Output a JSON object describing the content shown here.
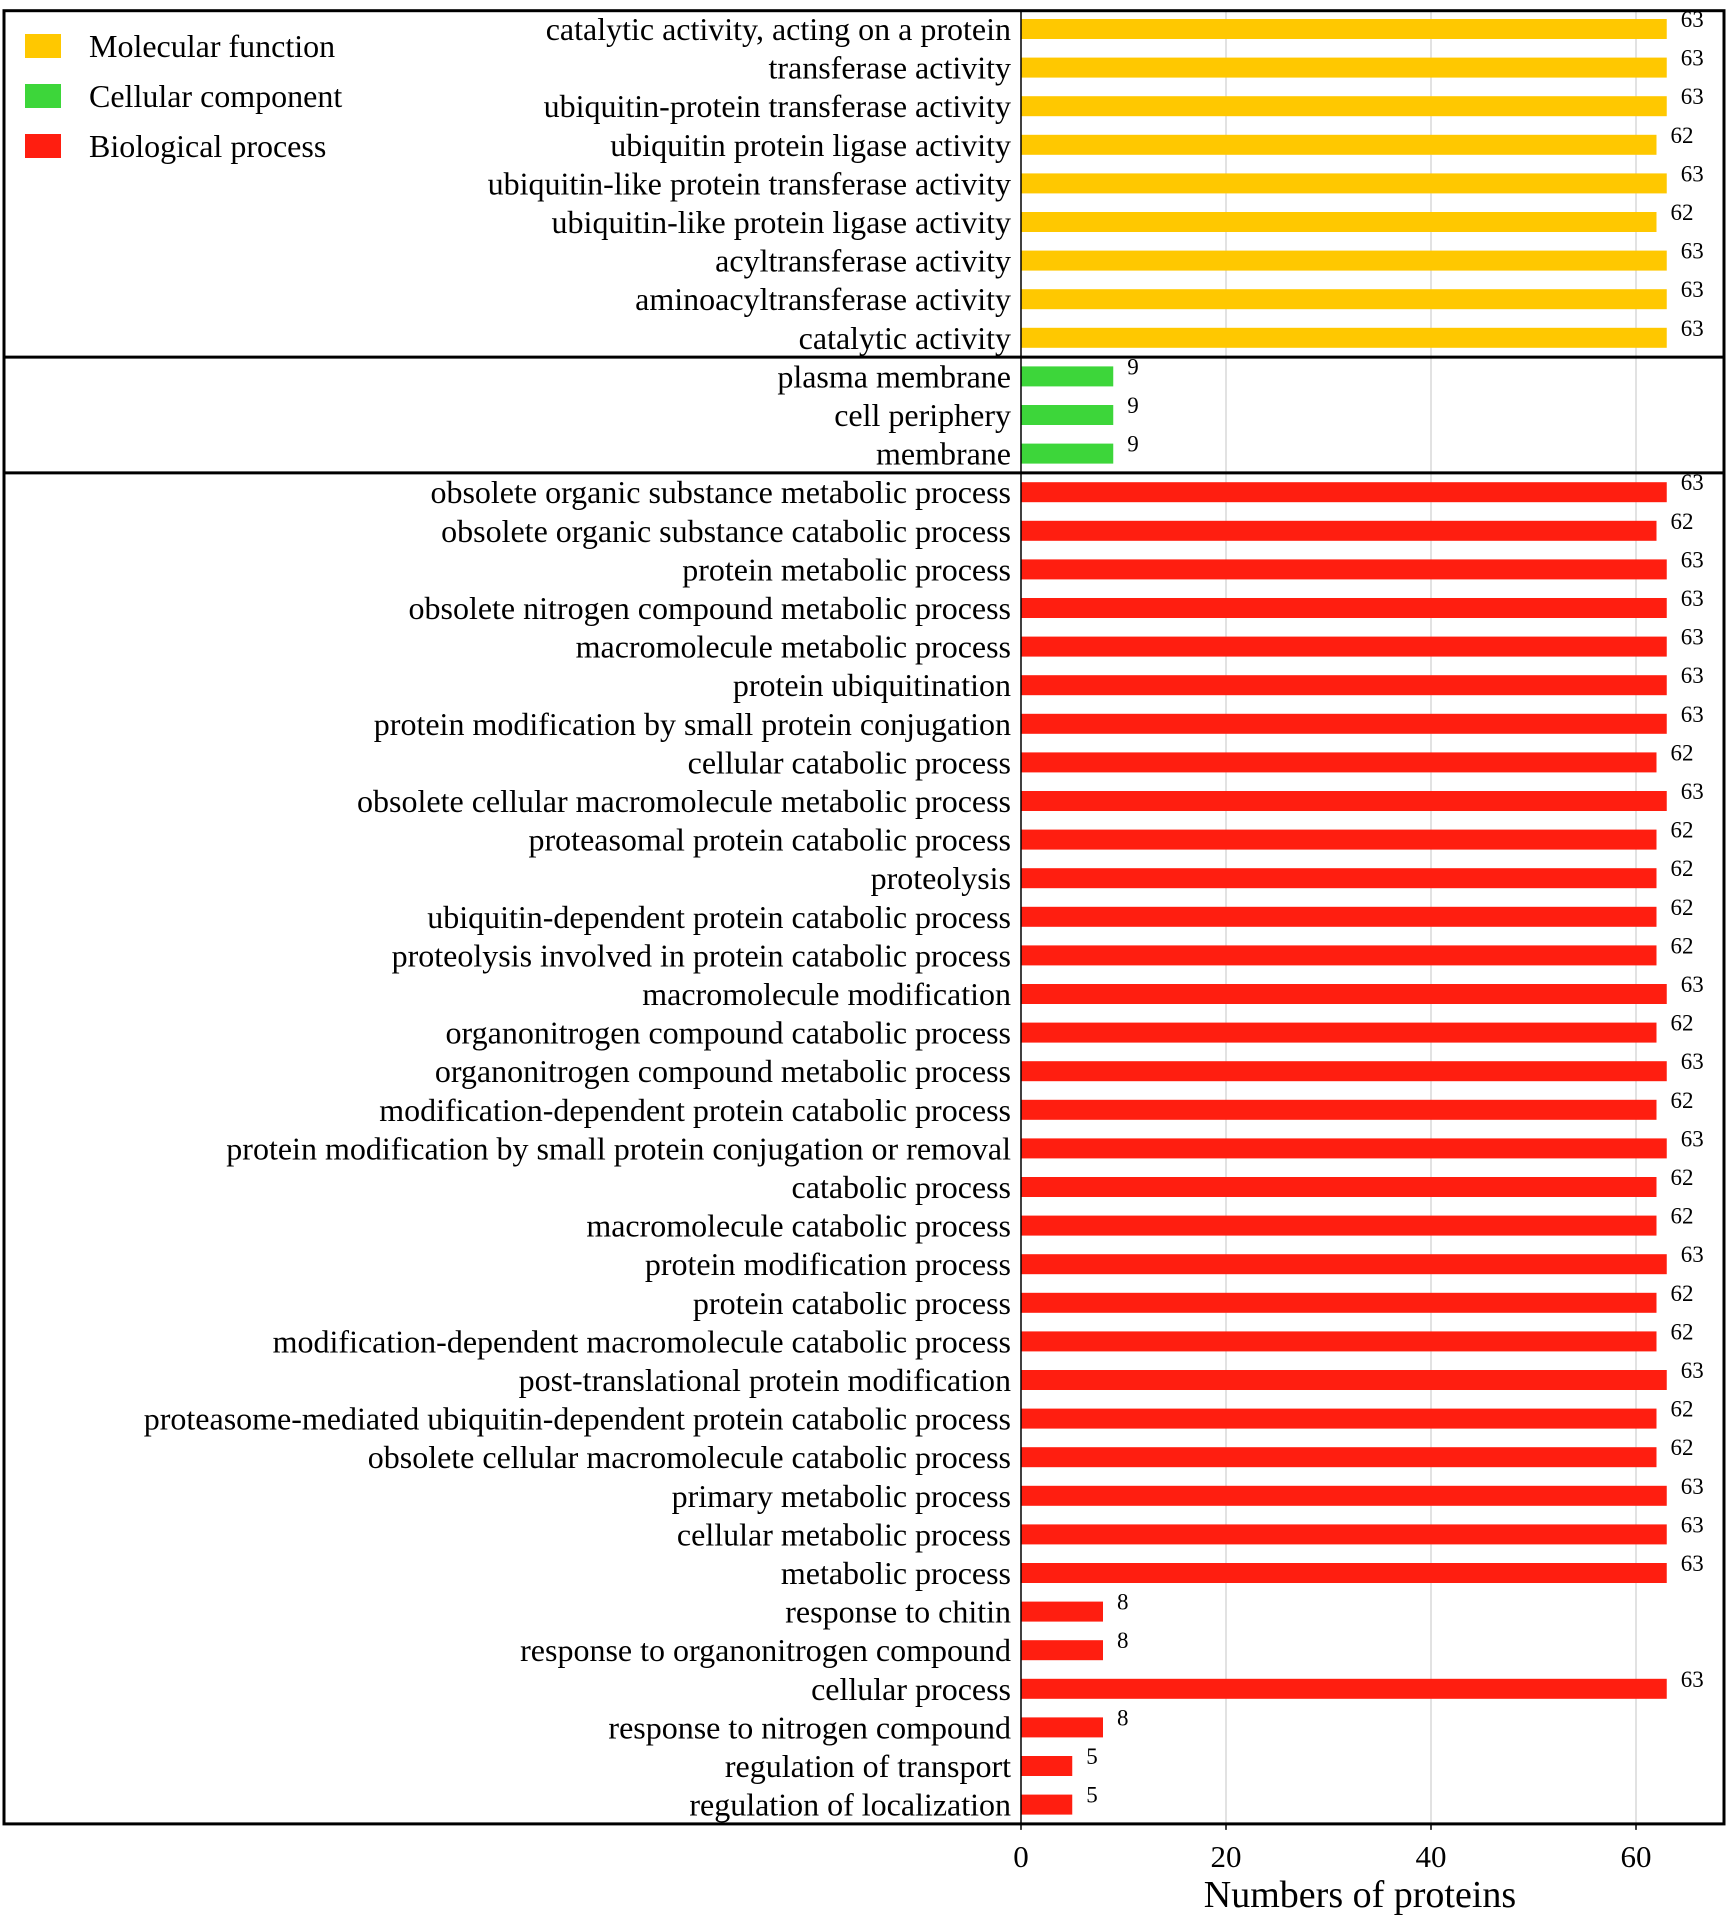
{
  "chart_data": {
    "type": "bar",
    "orientation": "horizontal",
    "xlabel": "Numbers of proteins",
    "xlim": [
      0,
      68
    ],
    "xticks": [
      0,
      20,
      40,
      60
    ],
    "grid": true,
    "legend_position": "top-left",
    "legend": [
      {
        "name": "Molecular function",
        "color": "#FFC800"
      },
      {
        "name": "Cellular component",
        "color": "#3DD63A"
      },
      {
        "name": "Biological process",
        "color": "#FF1E10"
      }
    ],
    "groups": [
      {
        "name": "Molecular function",
        "color": "#FFC800",
        "categories": [
          "catalytic activity, acting on a protein",
          "transferase activity",
          "ubiquitin-protein transferase activity",
          "ubiquitin protein ligase activity",
          "ubiquitin-like protein transferase activity",
          "ubiquitin-like protein ligase activity",
          "acyltransferase activity",
          "aminoacyltransferase activity",
          "catalytic activity"
        ],
        "values": [
          63,
          63,
          63,
          62,
          63,
          62,
          63,
          63,
          63
        ]
      },
      {
        "name": "Cellular component",
        "color": "#3DD63A",
        "categories": [
          "plasma membrane",
          "cell periphery",
          "membrane"
        ],
        "values": [
          9,
          9,
          9
        ]
      },
      {
        "name": "Biological process",
        "color": "#FF1E10",
        "categories": [
          "obsolete organic substance metabolic process",
          "obsolete organic substance catabolic process",
          "protein metabolic process",
          "obsolete nitrogen compound metabolic process",
          "macromolecule metabolic process",
          "protein ubiquitination",
          "protein modification by small protein conjugation",
          "cellular catabolic process",
          "obsolete cellular macromolecule metabolic process",
          "proteasomal protein catabolic process",
          "proteolysis",
          "ubiquitin-dependent protein catabolic process",
          "proteolysis involved in protein catabolic process",
          "macromolecule modification",
          "organonitrogen compound catabolic process",
          "organonitrogen compound metabolic process",
          "modification-dependent protein catabolic process",
          "protein modification by small protein conjugation or removal",
          "catabolic process",
          "macromolecule catabolic process",
          "protein modification process",
          "protein catabolic process",
          "modification-dependent macromolecule catabolic process",
          "post-translational protein modification",
          "proteasome-mediated ubiquitin-dependent protein catabolic process",
          "obsolete cellular macromolecule catabolic process",
          "primary metabolic process",
          "cellular metabolic process",
          "metabolic process",
          "response to chitin",
          "response to organonitrogen compound",
          "cellular process",
          "response to nitrogen compound",
          "regulation of transport",
          "regulation of localization"
        ],
        "values": [
          63,
          62,
          63,
          63,
          63,
          63,
          63,
          62,
          63,
          62,
          62,
          62,
          62,
          63,
          62,
          63,
          62,
          63,
          62,
          62,
          63,
          62,
          62,
          63,
          62,
          62,
          63,
          63,
          63,
          8,
          8,
          63,
          8,
          5,
          5
        ]
      }
    ]
  }
}
